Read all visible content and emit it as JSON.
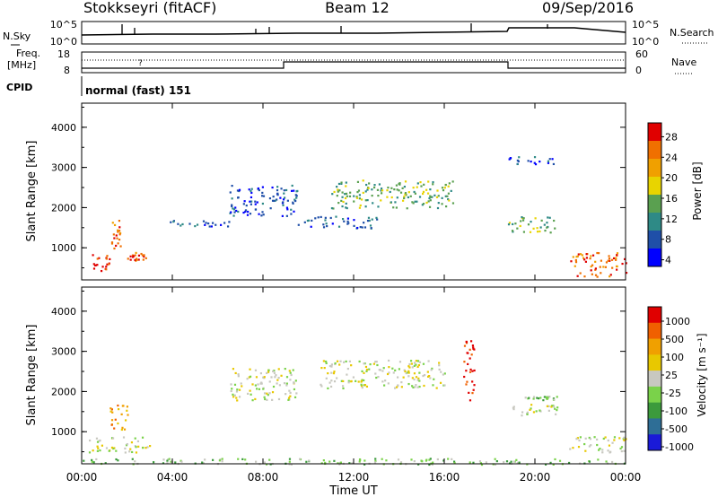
{
  "header": {
    "station": "Stokkseyri (fitACF)",
    "beam": "Beam 12",
    "date": "09/Sep/2016"
  },
  "noise_panel": {
    "left_label": "N.Sky",
    "right_label": "N.Search",
    "left_ticks": [
      "10^5",
      "10^0"
    ],
    "right_ticks": [
      "10^5",
      "10^0"
    ]
  },
  "freq_panel": {
    "left_label_1": "Freq.",
    "left_label_2": "[MHz]",
    "left_ticks": [
      "18",
      "8"
    ],
    "right_label": "Nave",
    "right_ticks": [
      "60",
      "0"
    ]
  },
  "cpid": {
    "label": "CPID",
    "value": "normal (fast) 151"
  },
  "colors": {
    "power_scale": [
      "#0000ff",
      "#1f4fa8",
      "#2e8a86",
      "#5aa050",
      "#e8d400",
      "#f0a000",
      "#f07000",
      "#e00000"
    ],
    "velocity_scale": [
      "#1a1ad8",
      "#2e6e96",
      "#3c9a3c",
      "#7ad24a",
      "#c8c8c0",
      "#e8c800",
      "#f0a000",
      "#f06000",
      "#e00000"
    ]
  },
  "chart_data": [
    {
      "type": "heatmap",
      "name": "power",
      "ylabel": "Slant Range [km]",
      "yticks": [
        "1000",
        "2000",
        "3000",
        "4000"
      ],
      "ylim": [
        200,
        4600
      ],
      "xlim": [
        0,
        24
      ],
      "colorbar_label": "Power [dB]",
      "colorbar_ticks": [
        "28",
        "24",
        "20",
        "16",
        "12",
        "8",
        "4"
      ],
      "echo_regions": [
        {
          "t0": 0.3,
          "t1": 1.2,
          "r0": 400,
          "r1": 900,
          "level": 7
        },
        {
          "t0": 1.3,
          "t1": 1.7,
          "r0": 900,
          "r1": 1700,
          "level": 6
        },
        {
          "t0": 2.0,
          "t1": 3.0,
          "r0": 700,
          "r1": 900,
          "level": 6
        },
        {
          "t0": 3.0,
          "t1": 6.5,
          "r0": 1550,
          "r1": 1700,
          "level": 1
        },
        {
          "t0": 6.5,
          "t1": 9.5,
          "r0": 1800,
          "r1": 2600,
          "level": 1
        },
        {
          "t0": 9.5,
          "t1": 13.0,
          "r0": 1500,
          "r1": 1800,
          "level": 1
        },
        {
          "t0": 11.0,
          "t1": 16.5,
          "r0": 2000,
          "r1": 2700,
          "level": 3
        },
        {
          "t0": 18.8,
          "t1": 20.9,
          "r0": 1400,
          "r1": 1800,
          "level": 3
        },
        {
          "t0": 18.8,
          "t1": 20.9,
          "r0": 3100,
          "r1": 3300,
          "level": 1
        },
        {
          "t0": 21.5,
          "t1": 24.0,
          "r0": 300,
          "r1": 900,
          "level": 6
        }
      ]
    },
    {
      "type": "heatmap",
      "name": "velocity",
      "ylabel": "Slant Range [km]",
      "yticks": [
        "1000",
        "2000",
        "3000",
        "4000"
      ],
      "ylim": [
        200,
        4600
      ],
      "xlim": [
        0,
        24
      ],
      "xlabel": "Time UT",
      "xticks": [
        "00:00",
        "04:00",
        "08:00",
        "12:00",
        "16:00",
        "20:00",
        "00:00"
      ],
      "colorbar_label": "Velocity [m s⁻¹]",
      "colorbar_ticks": [
        "1000",
        "500",
        "100",
        "25",
        "-25",
        "-100",
        "-500",
        "-1000"
      ],
      "echo_regions": [
        {
          "t0": 0.3,
          "t1": 3.0,
          "r0": 500,
          "r1": 900,
          "level": 4
        },
        {
          "t0": 1.2,
          "t1": 2.0,
          "r0": 1000,
          "r1": 1700,
          "level": 6
        },
        {
          "t0": 6.5,
          "t1": 9.5,
          "r0": 1800,
          "r1": 2600,
          "level": 4
        },
        {
          "t0": 10.5,
          "t1": 16.0,
          "r0": 2100,
          "r1": 2800,
          "level": 4
        },
        {
          "t0": 16.8,
          "t1": 17.3,
          "r0": 1800,
          "r1": 3300,
          "level": 8
        },
        {
          "t0": 18.8,
          "t1": 21.0,
          "r0": 1400,
          "r1": 1700,
          "level": 4
        },
        {
          "t0": 19.5,
          "t1": 21.0,
          "r0": 1800,
          "r1": 1900,
          "level": 3
        },
        {
          "t0": 21.5,
          "t1": 24.0,
          "r0": 500,
          "r1": 900,
          "level": 4
        },
        {
          "t0": 0.0,
          "t1": 24.0,
          "r0": 200,
          "r1": 350,
          "level": 3
        }
      ]
    }
  ]
}
